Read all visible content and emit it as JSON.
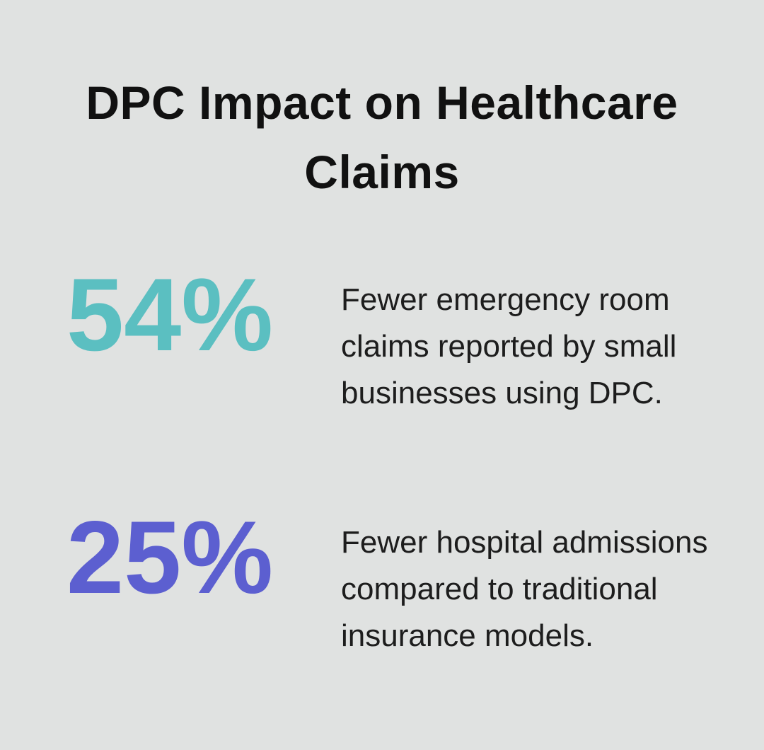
{
  "title": "DPC Impact on Healthcare Claims",
  "stats": [
    {
      "value": "54%",
      "color": "#5bbfc1",
      "description": "Fewer emergency room claims reported by small businesses using DPC."
    },
    {
      "value": "25%",
      "color": "#5c5fd0",
      "description": "Fewer hospital admissions compared to traditional insurance models."
    }
  ]
}
